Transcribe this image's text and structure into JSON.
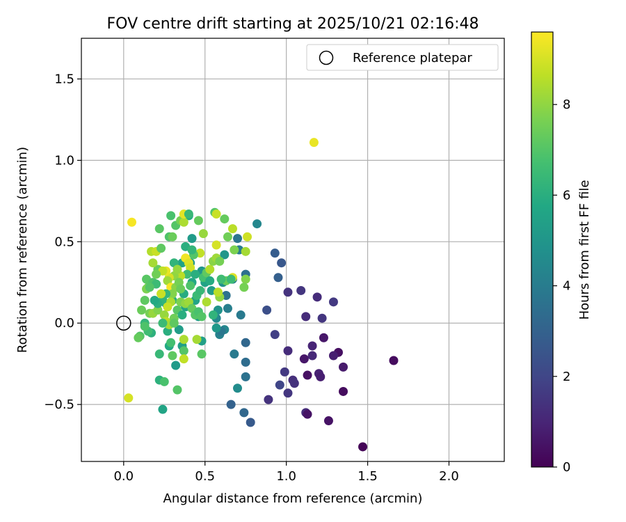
{
  "chart_data": {
    "type": "scatter",
    "title": "FOV centre drift starting at 2025/10/21 02:16:48",
    "xlabel": "Angular distance from reference (arcmin)",
    "ylabel": "Rotation from reference (arcmin)",
    "xlim": [
      -0.26,
      2.34
    ],
    "ylim": [
      -0.85,
      1.75
    ],
    "xticks": [
      0.0,
      0.5,
      1.0,
      1.5,
      2.0
    ],
    "xtick_labels": [
      "0.0",
      "0.5",
      "1.0",
      "1.5",
      "2.0"
    ],
    "yticks": [
      -0.5,
      0.0,
      0.5,
      1.0,
      1.5
    ],
    "ytick_labels": [
      "−0.5",
      "0.0",
      "0.5",
      "1.0",
      "1.5"
    ],
    "grid": true,
    "legend": {
      "location": "top-right",
      "entries": [
        "Reference platepar"
      ]
    },
    "reference_point": {
      "x": 0.0,
      "y": 0.0,
      "label": "Reference platepar"
    },
    "colorbar": {
      "label": "Hours from first FF file",
      "colormap": "viridis",
      "range": [
        0,
        9.6
      ],
      "ticks": [
        0,
        2,
        4,
        6,
        8
      ],
      "tick_labels": [
        "0",
        "2",
        "4",
        "6",
        "8"
      ]
    },
    "series": [
      {
        "name": "FOV centre",
        "points": [
          [
            1.47,
            -0.76,
            0.1
          ],
          [
            1.66,
            -0.23,
            0.3
          ],
          [
            1.35,
            -0.42,
            0.3
          ],
          [
            1.26,
            -0.6,
            0.5
          ],
          [
            1.32,
            -0.18,
            0.4
          ],
          [
            1.29,
            -0.2,
            0.8
          ],
          [
            1.35,
            -0.27,
            0.7
          ],
          [
            1.23,
            -0.09,
            0.6
          ],
          [
            1.2,
            -0.31,
            0.9
          ],
          [
            1.21,
            -0.33,
            0.8
          ],
          [
            1.16,
            -0.14,
            1.0
          ],
          [
            1.16,
            -0.2,
            1.1
          ],
          [
            1.12,
            -0.55,
            1.2
          ],
          [
            1.13,
            -0.56,
            0.5
          ],
          [
            1.13,
            -0.32,
            0.4
          ],
          [
            1.11,
            -0.22,
            0.6
          ],
          [
            1.04,
            -0.35,
            1.3
          ],
          [
            1.05,
            -0.37,
            1.4
          ],
          [
            1.01,
            -0.17,
            1.2
          ],
          [
            1.01,
            -0.43,
            1.5
          ],
          [
            0.99,
            -0.3,
            1.6
          ],
          [
            0.96,
            -0.38,
            2.0
          ],
          [
            0.93,
            -0.07,
            1.8
          ],
          [
            0.89,
            -0.47,
            1.4
          ],
          [
            1.09,
            0.2,
            1.5
          ],
          [
            1.12,
            0.04,
            1.2
          ],
          [
            1.01,
            0.19,
            1.4
          ],
          [
            1.19,
            0.16,
            1.2
          ],
          [
            1.22,
            0.03,
            1.5
          ],
          [
            1.29,
            0.13,
            1.6
          ],
          [
            0.93,
            0.43,
            2.8
          ],
          [
            0.97,
            0.37,
            2.6
          ],
          [
            0.95,
            0.28,
            2.9
          ],
          [
            0.88,
            0.08,
            2.3
          ],
          [
            0.78,
            -0.61,
            2.7
          ],
          [
            0.74,
            -0.55,
            3.2
          ],
          [
            0.66,
            -0.5,
            3.0
          ],
          [
            0.75,
            -0.33,
            3.6
          ],
          [
            0.75,
            -0.24,
            3.4
          ],
          [
            0.75,
            -0.12,
            3.2
          ],
          [
            0.7,
            -0.4,
            4.6
          ],
          [
            0.68,
            -0.19,
            3.9
          ],
          [
            0.62,
            -0.04,
            4.4
          ],
          [
            0.59,
            -0.07,
            4.2
          ],
          [
            0.6,
            -0.05,
            3.8
          ],
          [
            0.64,
            0.09,
            4.1
          ],
          [
            0.63,
            0.17,
            3.6
          ],
          [
            0.67,
            0.27,
            4.3
          ],
          [
            0.72,
            0.05,
            3.9
          ],
          [
            0.75,
            0.3,
            3.5
          ],
          [
            0.71,
            0.45,
            4.0
          ],
          [
            0.7,
            0.52,
            3.7
          ],
          [
            0.82,
            0.61,
            4.4
          ],
          [
            0.62,
            0.42,
            5.0
          ],
          [
            0.61,
            0.25,
            4.8
          ],
          [
            0.57,
            0.03,
            4.5
          ],
          [
            0.58,
            0.08,
            4.9
          ],
          [
            0.57,
            -0.03,
            5.1
          ],
          [
            0.54,
            0.2,
            5.3
          ],
          [
            0.5,
            0.25,
            5.5
          ],
          [
            0.48,
            0.32,
            5.0
          ],
          [
            0.46,
            0.04,
            5.2
          ],
          [
            0.48,
            -0.11,
            5.4
          ],
          [
            0.44,
            0.14,
            5.6
          ],
          [
            0.42,
            0.25,
            5.7
          ],
          [
            0.41,
            0.37,
            5.1
          ],
          [
            0.42,
            0.52,
            5.2
          ],
          [
            0.4,
            0.66,
            5.8
          ],
          [
            0.38,
            0.47,
            6.0
          ],
          [
            0.36,
            0.37,
            5.5
          ],
          [
            0.37,
            0.18,
            5.9
          ],
          [
            0.38,
            0.1,
            5.6
          ],
          [
            0.36,
            -0.14,
            5.4
          ],
          [
            0.34,
            -0.04,
            5.3
          ],
          [
            0.32,
            -0.26,
            5.2
          ],
          [
            0.3,
            0.14,
            6.1
          ],
          [
            0.28,
            -0.14,
            5.8
          ],
          [
            0.27,
            -0.05,
            6.0
          ],
          [
            0.26,
            0.12,
            5.7
          ],
          [
            0.24,
            0.14,
            6.2
          ],
          [
            0.24,
            -0.53,
            5.6
          ],
          [
            0.22,
            -0.35,
            6.1
          ],
          [
            0.25,
            -0.36,
            6.8
          ],
          [
            0.22,
            -0.19,
            6.4
          ],
          [
            0.33,
            -0.41,
            7.0
          ],
          [
            0.3,
            -0.2,
            7.2
          ],
          [
            0.29,
            -0.12,
            6.7
          ],
          [
            0.17,
            -0.06,
            6.1
          ],
          [
            0.15,
            -0.05,
            6.6
          ],
          [
            0.13,
            0.0,
            6.3
          ],
          [
            0.13,
            -0.02,
            6.9
          ],
          [
            0.11,
            0.08,
            7.4
          ],
          [
            0.1,
            -0.08,
            7.0
          ],
          [
            0.09,
            -0.09,
            7.3
          ],
          [
            0.16,
            0.06,
            7.6
          ],
          [
            0.18,
            0.06,
            8.1
          ],
          [
            0.21,
            0.08,
            7.8
          ],
          [
            0.13,
            0.14,
            7.2
          ],
          [
            0.15,
            0.22,
            7.5
          ],
          [
            0.14,
            0.21,
            7.7
          ],
          [
            0.14,
            0.27,
            7.1
          ],
          [
            0.18,
            0.25,
            6.9
          ],
          [
            0.2,
            0.24,
            6.5
          ],
          [
            0.21,
            0.33,
            7.3
          ],
          [
            0.18,
            0.37,
            8.3
          ],
          [
            0.17,
            0.44,
            8.5
          ],
          [
            0.2,
            0.44,
            8.8
          ],
          [
            0.23,
            0.46,
            7.2
          ],
          [
            0.22,
            0.58,
            7.1
          ],
          [
            0.28,
            0.53,
            6.9
          ],
          [
            0.3,
            0.53,
            7.4
          ],
          [
            0.32,
            0.6,
            7.0
          ],
          [
            0.29,
            0.66,
            6.8
          ],
          [
            0.35,
            0.63,
            7.6
          ],
          [
            0.37,
            0.62,
            8.4
          ],
          [
            0.37,
            0.67,
            9.2
          ],
          [
            0.4,
            0.67,
            6.4
          ],
          [
            0.46,
            0.63,
            7.3
          ],
          [
            0.49,
            0.55,
            8.1
          ],
          [
            0.47,
            0.43,
            8.7
          ],
          [
            0.43,
            0.42,
            7.0
          ],
          [
            0.38,
            0.4,
            9.4
          ],
          [
            0.4,
            0.37,
            9.1
          ],
          [
            0.41,
            0.34,
            8.9
          ],
          [
            0.39,
            0.3,
            6.6
          ],
          [
            0.35,
            0.29,
            8.6
          ],
          [
            0.31,
            0.29,
            8.0
          ],
          [
            0.28,
            0.28,
            9.0
          ],
          [
            0.26,
            0.32,
            9.3
          ],
          [
            0.24,
            0.32,
            8.7
          ],
          [
            0.27,
            0.26,
            8.2
          ],
          [
            0.29,
            0.22,
            9.5
          ],
          [
            0.32,
            0.22,
            7.9
          ],
          [
            0.34,
            0.25,
            7.6
          ],
          [
            0.35,
            0.21,
            7.4
          ],
          [
            0.3,
            0.18,
            7.8
          ],
          [
            0.29,
            0.13,
            8.4
          ],
          [
            0.27,
            0.1,
            8.8
          ],
          [
            0.25,
            0.05,
            8.1
          ],
          [
            0.26,
            0.01,
            8.6
          ],
          [
            0.28,
            -0.01,
            8.3
          ],
          [
            0.31,
            0.03,
            7.5
          ],
          [
            0.33,
            0.08,
            7.1
          ],
          [
            0.35,
            0.13,
            7.7
          ],
          [
            0.38,
            0.12,
            8.0
          ],
          [
            0.4,
            0.13,
            8.2
          ],
          [
            0.42,
            0.09,
            7.3
          ],
          [
            0.44,
            0.05,
            7.0
          ],
          [
            0.46,
            0.07,
            6.8
          ],
          [
            0.45,
            0.17,
            6.5
          ],
          [
            0.47,
            0.2,
            6.4
          ],
          [
            0.49,
            0.28,
            6.7
          ],
          [
            0.51,
            0.31,
            7.2
          ],
          [
            0.53,
            0.33,
            8.5
          ],
          [
            0.55,
            0.38,
            7.9
          ],
          [
            0.57,
            0.4,
            8.2
          ],
          [
            0.59,
            0.38,
            7.6
          ],
          [
            0.57,
            0.48,
            9.0
          ],
          [
            0.56,
            0.68,
            7.0
          ],
          [
            0.57,
            0.67,
            8.8
          ],
          [
            0.62,
            0.64,
            7.3
          ],
          [
            0.64,
            0.53,
            7.5
          ],
          [
            0.67,
            0.58,
            8.6
          ],
          [
            0.68,
            0.45,
            7.7
          ],
          [
            0.76,
            0.53,
            8.9
          ],
          [
            0.75,
            0.44,
            8.3
          ],
          [
            0.75,
            0.27,
            7.8
          ],
          [
            0.74,
            0.22,
            7.6
          ],
          [
            0.67,
            0.28,
            9.1
          ],
          [
            0.63,
            0.26,
            7.4
          ],
          [
            0.59,
            0.16,
            8.0
          ],
          [
            0.58,
            0.19,
            8.6
          ],
          [
            0.51,
            0.13,
            8.4
          ],
          [
            0.48,
            0.04,
            7.0
          ],
          [
            0.45,
            -0.1,
            8.3
          ],
          [
            0.48,
            -0.19,
            7.1
          ],
          [
            0.37,
            -0.17,
            7.0
          ],
          [
            0.37,
            -0.22,
            8.7
          ],
          [
            0.37,
            -0.1,
            8.4
          ],
          [
            0.05,
            0.62,
            9.5
          ],
          [
            0.03,
            -0.46,
            9.0
          ],
          [
            1.17,
            1.11,
            9.3
          ],
          [
            0.26,
            0.18,
            6.3
          ],
          [
            0.31,
            0.37,
            6.2
          ],
          [
            0.44,
            0.3,
            6.0
          ],
          [
            0.53,
            0.26,
            5.9
          ],
          [
            0.55,
            0.05,
            6.2
          ],
          [
            0.6,
            0.27,
            6.6
          ],
          [
            0.66,
            0.27,
            6.5
          ],
          [
            0.42,
            0.45,
            6.3
          ],
          [
            0.21,
            0.12,
            6.0
          ],
          [
            0.16,
            0.22,
            7.0
          ],
          [
            0.2,
            0.3,
            7.5
          ],
          [
            0.33,
            0.33,
            8.1
          ],
          [
            0.23,
            0.18,
            8.8
          ],
          [
            0.19,
            0.14,
            5.8
          ],
          [
            0.24,
            0.0,
            6.5
          ],
          [
            0.31,
            0.0,
            7.2
          ],
          [
            0.36,
            0.05,
            6.0
          ],
          [
            0.41,
            0.23,
            6.9
          ]
        ]
      }
    ]
  }
}
